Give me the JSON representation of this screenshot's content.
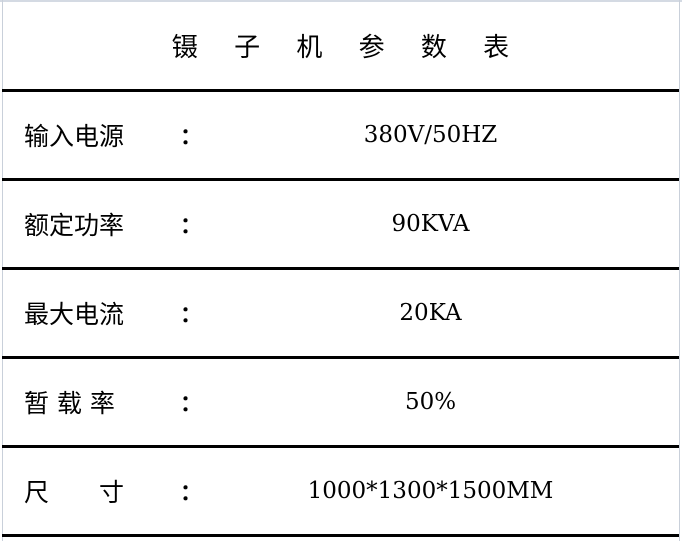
{
  "title": "镊 子 机 参 数 表",
  "rows": [
    {
      "label": "输入电源",
      "colon": "：",
      "value": "380V/50HZ"
    },
    {
      "label": "额定功率",
      "colon": "：",
      "value": "90KVA"
    },
    {
      "label": "最大电流",
      "colon": "：",
      "value": "20KA"
    },
    {
      "label": "暂 载 率",
      "colon": "：",
      "value": "50%"
    },
    {
      "label": "尺　　寸",
      "colon": "：",
      "value": "1000*1300*1500MM"
    }
  ]
}
